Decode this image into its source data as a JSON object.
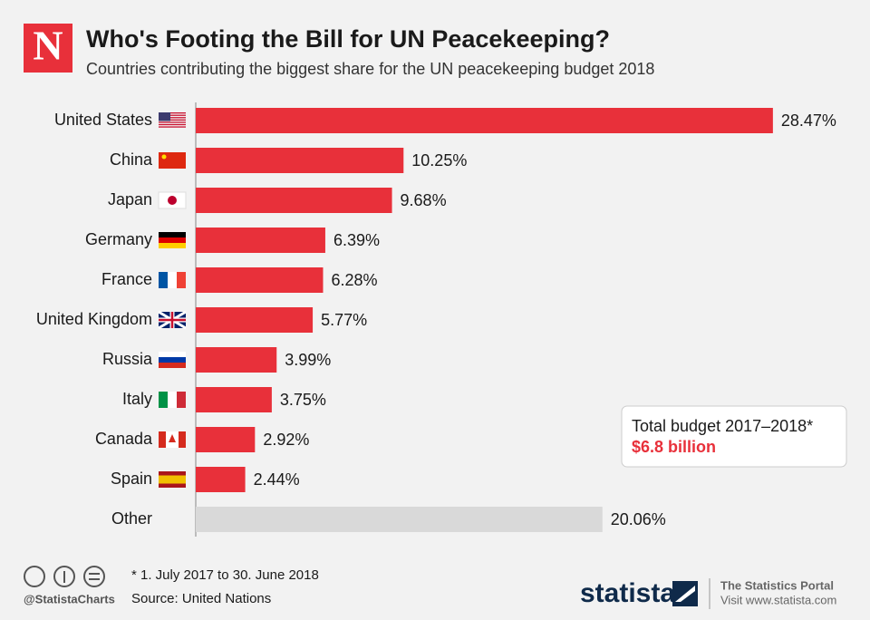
{
  "chart_data": {
    "type": "bar",
    "orientation": "horizontal",
    "title": "Who's Footing the Bill for UN Peacekeeping?",
    "subtitle": "Countries contributing the biggest share for the UN peacekeeping budget 2018",
    "categories": [
      "United States",
      "China",
      "Japan",
      "Germany",
      "France",
      "United Kingdom",
      "Russia",
      "Italy",
      "Canada",
      "Spain",
      "Other"
    ],
    "values": [
      28.47,
      10.25,
      9.68,
      6.39,
      6.28,
      5.77,
      3.99,
      3.75,
      2.92,
      2.44,
      20.06
    ],
    "value_labels": [
      "28.47%",
      "10.25%",
      "9.68%",
      "6.39%",
      "6.28%",
      "5.77%",
      "3.99%",
      "3.75%",
      "2.92%",
      "2.44%",
      "20.06%"
    ],
    "colors": [
      "#e8303a",
      "#e8303a",
      "#e8303a",
      "#e8303a",
      "#e8303a",
      "#e8303a",
      "#e8303a",
      "#e8303a",
      "#e8303a",
      "#e8303a",
      "#d9d9d9"
    ],
    "annotation": {
      "text": "Total budget 2017–2018*",
      "highlight": "$6.8 billion"
    },
    "footnote": "* 1. July 2017 to 30. June 2018",
    "source": "Source: United Nations",
    "handle": "@StatistaCharts",
    "brand": {
      "logo": "N",
      "name": "statista",
      "tagline": "The Statistics Portal",
      "url": "Visit www.statista.com"
    }
  }
}
